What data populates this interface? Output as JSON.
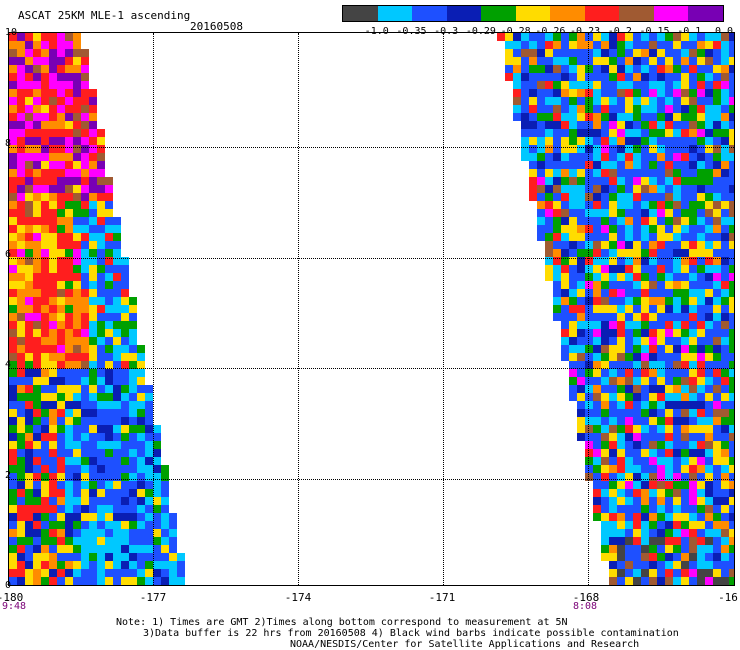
{
  "header": {
    "title": "ASCAT 25KM MLE-1 ascending",
    "date": "20160508"
  },
  "legend": {
    "colors": [
      "#444444",
      "#00c8ff",
      "#1e50ff",
      "#0a1eb4",
      "#00a000",
      "#ffdc00",
      "#ff8c00",
      "#ff1e1e",
      "#a05a32",
      "#ff00ff",
      "#7800b4"
    ],
    "labels": [
      "-1.0",
      "-0.35",
      "-0.3",
      "-0.29",
      "-0.28",
      "-0.26",
      "-0.23",
      "-0.2",
      "-0.15",
      "-0.1",
      "0.0"
    ]
  },
  "axes": {
    "lon_labels": [
      "-180",
      "-177",
      "-174",
      "-171",
      "-168",
      "-16"
    ],
    "lat_labels": [
      "10",
      "8",
      "6",
      "4",
      "2",
      "0"
    ]
  },
  "times": {
    "left": "9:48",
    "right": "8:08"
  },
  "notes": [
    "Note: 1) Times are GMT 2)Times along bottom correspond to measurement at 5N",
    "3)Data buffer is 22 hrs from 20160508 4) Black wind barbs indicate possible contamination",
    "NOAA/NESDIS/Center for Satellite Applications and Research"
  ]
}
